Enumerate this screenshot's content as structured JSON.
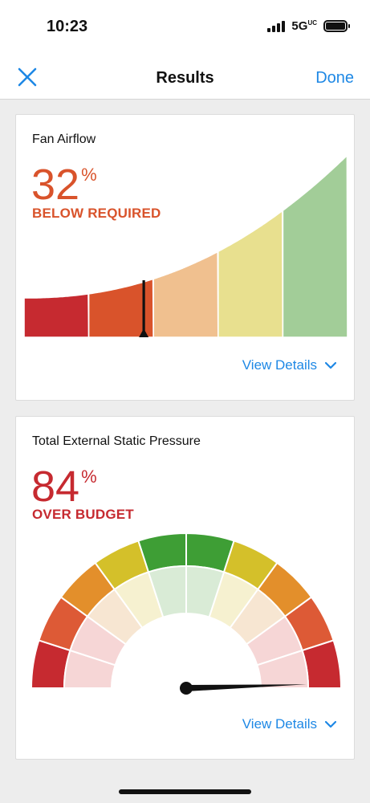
{
  "status_bar": {
    "time": "10:23",
    "network": "5G",
    "network_sup": "UC"
  },
  "nav": {
    "title": "Results",
    "done_label": "Done",
    "close_icon": "close-icon"
  },
  "cards": [
    {
      "title": "Fan Airflow",
      "value": "32",
      "unit": "%",
      "status": "BELOW REQUIRED",
      "status_color": "#d9532b",
      "details_label": "View Details",
      "gauge": {
        "type": "ramp",
        "segment_colors": [
          "#c62a30",
          "#d9532b",
          "#f0c08f",
          "#e8e08f",
          "#a2cd98"
        ],
        "needle_fraction": 0.37
      }
    },
    {
      "title": "Total External Static Pressure",
      "value": "84",
      "unit": "%",
      "status": "OVER BUDGET",
      "status_color": "#c62a30",
      "details_label": "View Details",
      "gauge": {
        "type": "semicircle",
        "outer_colors": [
          "#c62a30",
          "#dd5a36",
          "#e38f2b",
          "#d4c02a",
          "#3e9e35",
          "#3e9e35",
          "#d4c02a",
          "#e38f2b",
          "#dd5a36",
          "#c62a30"
        ],
        "inner_colors": [
          "#f6d6d6",
          "#f6d6d6",
          "#f7e6d2",
          "#f6f1d0",
          "#d9ebd6",
          "#d9ebd6",
          "#f6f1d0",
          "#f7e6d2",
          "#f6d6d6",
          "#f6d6d6"
        ],
        "needle_fraction": 0.99
      }
    }
  ]
}
